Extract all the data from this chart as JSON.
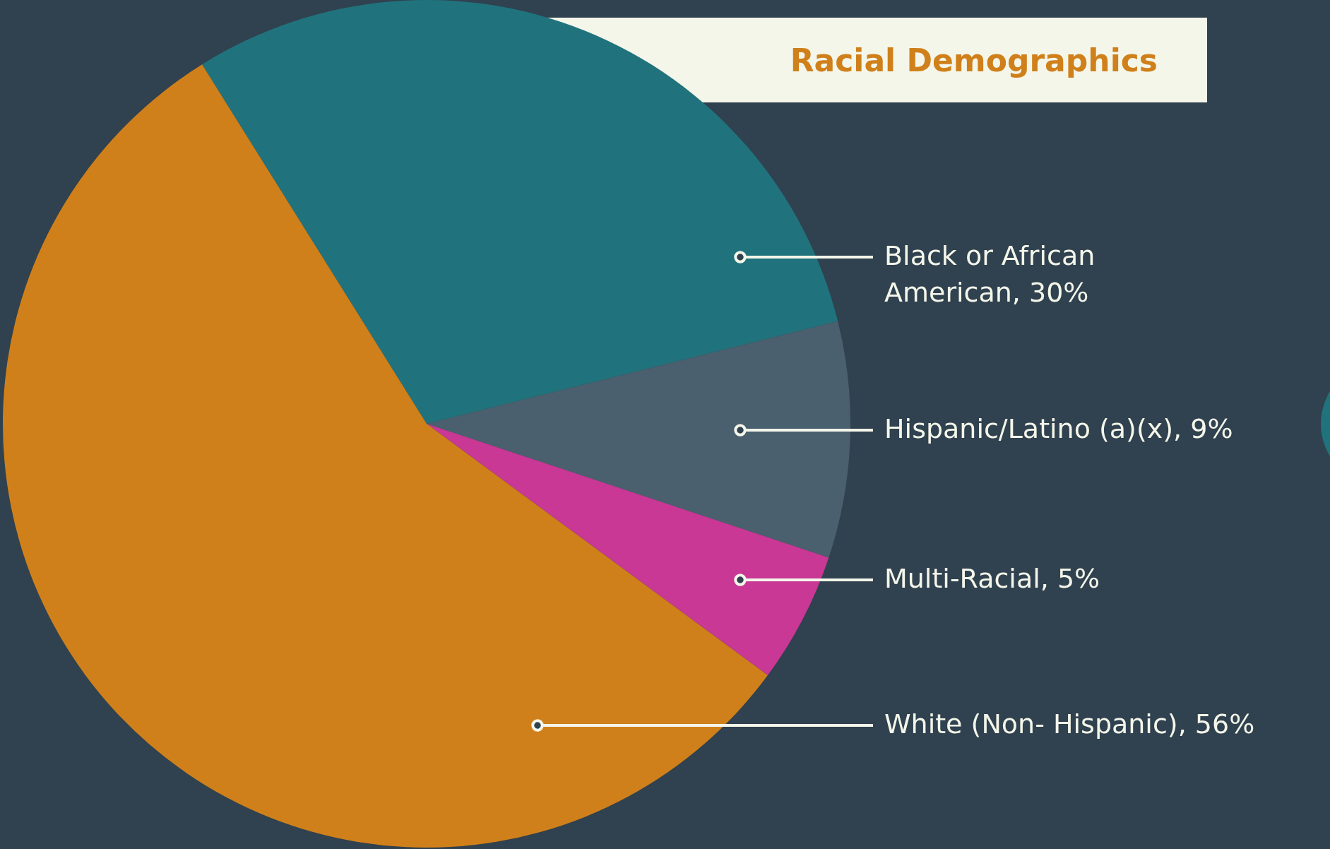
{
  "chart_data": {
    "type": "pie",
    "title": "Racial Demographics",
    "categories": [
      "Black or African American",
      "Hispanic/Latino (a)(x)",
      "Multi-Racial",
      "White (Non- Hispanic)"
    ],
    "values": [
      30,
      9,
      5,
      56
    ],
    "colors": [
      "#20737c",
      "#4a606e",
      "#c83894",
      "#d0801a"
    ],
    "value_labels": [
      "30%",
      "9%",
      "5%",
      "56%"
    ]
  }
}
